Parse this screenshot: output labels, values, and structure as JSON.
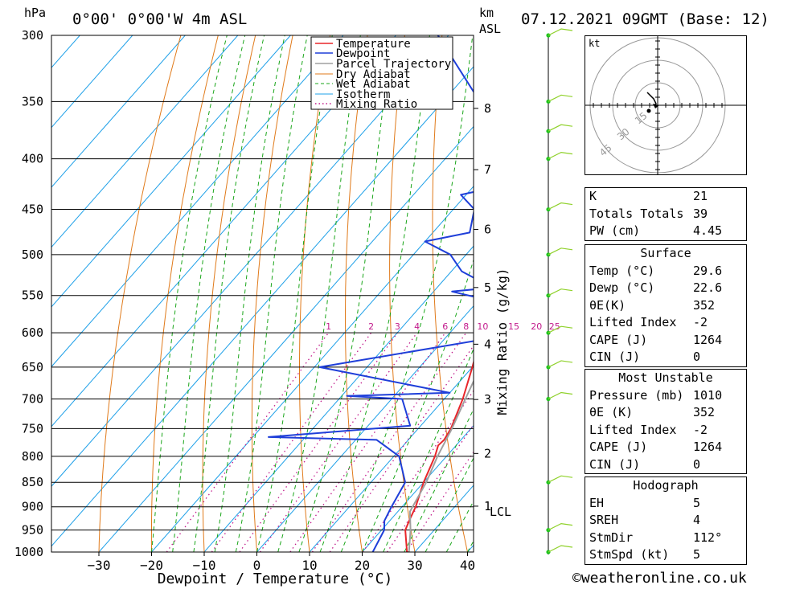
{
  "header": {
    "hpa_label": "hPa",
    "location": "0°00' 0°00'W 4m ASL",
    "km_label": "km",
    "asl_label": "ASL",
    "datetime": "07.12.2021 09GMT (Base: 12)"
  },
  "chart_data": {
    "type": "line",
    "xlabel": "Dewpoint / Temperature (°C)",
    "ylabel": "hPa",
    "right_axis_label": "Mixing Ratio (g/kg)",
    "x_ticks": [
      -30,
      -20,
      -10,
      0,
      10,
      20,
      30,
      40
    ],
    "pressure_levels": [
      300,
      350,
      400,
      450,
      500,
      550,
      600,
      650,
      700,
      750,
      800,
      850,
      900,
      950,
      1000
    ],
    "height_ticks_km": [
      1,
      2,
      3,
      4,
      5,
      6,
      7,
      8
    ],
    "lcl_label": "LCL",
    "mixing_ratio_labels": [
      "1",
      "2",
      "3",
      "4",
      "6",
      "8",
      "10",
      "15",
      "20",
      "25"
    ],
    "legend": [
      "Temperature",
      "Dewpoint",
      "Parcel Trajectory",
      "Dry Adiabat",
      "Wet Adiabat",
      "Isotherm",
      "Mixing Ratio"
    ],
    "series": [
      {
        "name": "Temperature",
        "points": [
          [
            1010,
            29.6
          ],
          [
            1000,
            28.5
          ],
          [
            950,
            24.5
          ],
          [
            925,
            23.5
          ],
          [
            900,
            22.6
          ],
          [
            850,
            20.0
          ],
          [
            800,
            17.8
          ],
          [
            780,
            16.6
          ],
          [
            770,
            16.8
          ],
          [
            750,
            16.2
          ],
          [
            700,
            13.5
          ],
          [
            650,
            10.0
          ],
          [
            600,
            6.0
          ],
          [
            550,
            2.2
          ],
          [
            540,
            2.5
          ],
          [
            500,
            -2.5
          ],
          [
            475,
            -5.0
          ],
          [
            450,
            -8.5
          ],
          [
            400,
            -15.0
          ],
          [
            380,
            -18.0
          ],
          [
            360,
            -20.5
          ],
          [
            350,
            -22.0
          ],
          [
            320,
            -26.0
          ],
          [
            300,
            -29.5
          ]
        ]
      },
      {
        "name": "Dewpoint",
        "points": [
          [
            1010,
            22.6
          ],
          [
            1000,
            22.0
          ],
          [
            950,
            20.5
          ],
          [
            930,
            19.0
          ],
          [
            900,
            18.0
          ],
          [
            850,
            16.5
          ],
          [
            800,
            11.0
          ],
          [
            770,
            4.0
          ],
          [
            765,
            -17.0
          ],
          [
            745,
            8.0
          ],
          [
            700,
            2.0
          ],
          [
            695,
            -9.0
          ],
          [
            690,
            10.0
          ],
          [
            650,
            -19.0
          ],
          [
            610,
            7.0
          ],
          [
            600,
            6.0
          ],
          [
            555,
            1.0
          ],
          [
            545,
            -6.5
          ],
          [
            540,
            0.5
          ],
          [
            520,
            -8.0
          ],
          [
            500,
            -13.0
          ],
          [
            485,
            -20.0
          ],
          [
            475,
            -13.0
          ],
          [
            450,
            -16.0
          ],
          [
            435,
            -21.0
          ],
          [
            425,
            -14.0
          ],
          [
            410,
            -20.0
          ],
          [
            395,
            -15.0
          ],
          [
            385,
            -14.0
          ],
          [
            370,
            -25.0
          ],
          [
            360,
            -16.0
          ],
          [
            350,
            -33.0
          ],
          [
            300,
            -52.0
          ]
        ]
      },
      {
        "name": "Parcel Trajectory",
        "points": [
          [
            1010,
            29.6
          ],
          [
            950,
            25.5
          ],
          [
            910,
            22.3
          ],
          [
            850,
            20.5
          ],
          [
            800,
            18.3
          ],
          [
            750,
            16.4
          ],
          [
            700,
            14.0
          ],
          [
            650,
            11.5
          ],
          [
            600,
            8.5
          ],
          [
            550,
            5.2
          ],
          [
            500,
            1.5
          ],
          [
            450,
            -2.8
          ],
          [
            400,
            -7.8
          ],
          [
            380,
            -10.0
          ],
          [
            365,
            -12.0
          ]
        ]
      }
    ]
  },
  "hodograph": {
    "unit_label": "kt",
    "ring_labels": [
      "15",
      "30",
      "45"
    ]
  },
  "indices": {
    "k_label": "K",
    "k_value": "21",
    "tt_label": "Totals Totals",
    "tt_value": "39",
    "pw_label": "PW (cm)",
    "pw_value": "4.45"
  },
  "surface": {
    "title": "Surface",
    "temp_label": "Temp (°C)",
    "temp_value": "29.6",
    "dewp_label": "Dewp (°C)",
    "dewp_value": "22.6",
    "theta_label": "θE(K)",
    "theta_value": "352",
    "li_label": "Lifted Index",
    "li_value": "-2",
    "cape_label": "CAPE (J)",
    "cape_value": "1264",
    "cin_label": "CIN (J)",
    "cin_value": "0"
  },
  "most_unstable": {
    "title": "Most Unstable",
    "pressure_label": "Pressure (mb)",
    "pressure_value": "1010",
    "theta_label": "θE (K)",
    "theta_value": "352",
    "li_label": "Lifted Index",
    "li_value": "-2",
    "cape_label": "CAPE (J)",
    "cape_value": "1264",
    "cin_label": "CIN (J)",
    "cin_value": "0"
  },
  "hodograph_stats": {
    "title": "Hodograph",
    "eh_label": "EH",
    "eh_value": "5",
    "sreh_label": "SREH",
    "sreh_value": "4",
    "stmdir_label": "StmDir",
    "stmdir_value": "112°",
    "stmspd_label": "StmSpd (kt)",
    "stmspd_value": "5"
  },
  "credit": "©weatheronline.co.uk",
  "colors": {
    "temperature": "#e8262a",
    "dewpoint": "#1f3fd9",
    "parcel": "#a0a0a0",
    "dry_adiabat": "#e07a1a",
    "wet_adiabat": "#19a519",
    "isotherm": "#1ea0e8",
    "mixing_ratio": "#c21b8c",
    "wind": "#8fd12a"
  }
}
